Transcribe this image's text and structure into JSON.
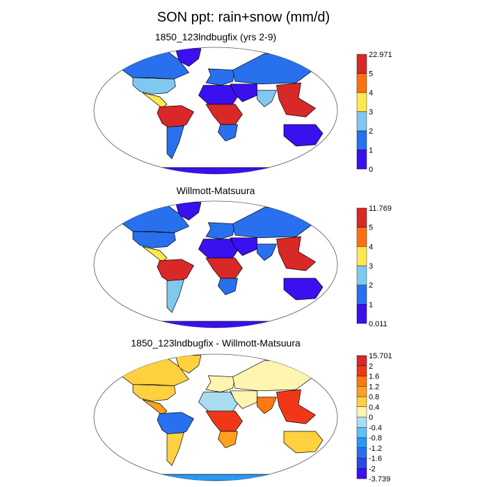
{
  "figure": {
    "title": "SON ppt: rain+snow (mm/d)"
  },
  "colors": {
    "absolute": [
      "#3a10ee",
      "#2870ee",
      "#80c8f0",
      "#ffe850",
      "#ff7010",
      "#d82828"
    ],
    "difference": [
      "#3a10ee",
      "#2848e8",
      "#2870f0",
      "#2a98f5",
      "#60c0f8",
      "#a8dcf0",
      "#fff4b0",
      "#ffd040",
      "#ffa020",
      "#ff7810",
      "#f03818",
      "#d82828"
    ],
    "ocean": "#ffffff",
    "coast": "#000000"
  },
  "chart_data": [
    {
      "type": "heatmap",
      "projection": "Robinson-like world map",
      "title": "1850_123lndbugfix (yrs 2-9)",
      "colorbar": {
        "labels": [
          "22.971",
          "5",
          "4",
          "3",
          "2",
          "1",
          "0"
        ],
        "max": 22.971,
        "min": 0,
        "bounds": [
          0,
          1,
          2,
          3,
          4,
          5,
          22.971
        ]
      },
      "regions": [
        {
          "name": "Greenland",
          "value": 0.5
        },
        {
          "name": "Canada",
          "value": 1.2
        },
        {
          "name": "United States",
          "value": 2.2
        },
        {
          "name": "Central America",
          "value": 3.5
        },
        {
          "name": "Amazon",
          "value": 6.0
        },
        {
          "name": "Southern South America",
          "value": 2.0
        },
        {
          "name": "Europe",
          "value": 1.5
        },
        {
          "name": "Sahara",
          "value": 0.2
        },
        {
          "name": "Central Africa",
          "value": 6.0
        },
        {
          "name": "Southern Africa",
          "value": 1.5
        },
        {
          "name": "Middle East",
          "value": 0.4
        },
        {
          "name": "Russia",
          "value": 1.2
        },
        {
          "name": "India",
          "value": 2.5
        },
        {
          "name": "Southeast Asia",
          "value": 6.0
        },
        {
          "name": "Australia",
          "value": 0.8
        },
        {
          "name": "Antarctica",
          "value": 0.4
        }
      ]
    },
    {
      "type": "heatmap",
      "projection": "Robinson-like world map",
      "title": "Willmott-Matsuura",
      "colorbar": {
        "labels": [
          "11.769",
          "5",
          "4",
          "3",
          "2",
          "1",
          "0.011"
        ],
        "max": 11.769,
        "min": 0.011,
        "bounds": [
          0.011,
          1,
          2,
          3,
          4,
          5,
          11.769
        ]
      },
      "regions": [
        {
          "name": "Greenland",
          "value": 0.6
        },
        {
          "name": "Canada",
          "value": 1.3
        },
        {
          "name": "United States",
          "value": 2.0
        },
        {
          "name": "Central America",
          "value": 3.5
        },
        {
          "name": "Amazon",
          "value": 5.5
        },
        {
          "name": "Southern South America",
          "value": 2.2
        },
        {
          "name": "Europe",
          "value": 1.8
        },
        {
          "name": "Sahara",
          "value": 0.1
        },
        {
          "name": "Central Africa",
          "value": 5.5
        },
        {
          "name": "Southern Africa",
          "value": 1.2
        },
        {
          "name": "Middle East",
          "value": 0.3
        },
        {
          "name": "Russia",
          "value": 1.4
        },
        {
          "name": "India",
          "value": 2.0
        },
        {
          "name": "Southeast Asia",
          "value": 6.0
        },
        {
          "name": "Australia",
          "value": 0.7
        },
        {
          "name": "Antarctica",
          "value": 0.4
        }
      ]
    },
    {
      "type": "heatmap",
      "projection": "Robinson-like world map",
      "title": "1850_123lndbugfix - Willmott-Matsuura",
      "colorbar": {
        "labels": [
          "15.701",
          "2",
          "1.6",
          "1.2",
          "0.8",
          "0.4",
          "0",
          "-0.4",
          "-0.8",
          "-1.2",
          "-1.6",
          "-2",
          "-3.739"
        ],
        "max": 15.701,
        "min": -3.739,
        "bounds": [
          -3.739,
          -2,
          -1.6,
          -1.2,
          -0.8,
          -0.4,
          0,
          0.4,
          0.8,
          1.2,
          1.6,
          2,
          15.701
        ]
      },
      "regions": [
        {
          "name": "Greenland",
          "value": 0.6
        },
        {
          "name": "Canada",
          "value": 0.5
        },
        {
          "name": "United States",
          "value": 0.5
        },
        {
          "name": "Central America",
          "value": 0.9
        },
        {
          "name": "Amazon",
          "value": -1.3
        },
        {
          "name": "Southern South America",
          "value": 0.5
        },
        {
          "name": "Europe",
          "value": 0.3
        },
        {
          "name": "Sahara",
          "value": -0.1
        },
        {
          "name": "Central Africa",
          "value": 1.9
        },
        {
          "name": "Southern Africa",
          "value": 0.9
        },
        {
          "name": "Middle East",
          "value": 0.2
        },
        {
          "name": "Russia",
          "value": 0.2
        },
        {
          "name": "India",
          "value": 1.3
        },
        {
          "name": "Southeast Asia",
          "value": 1.8
        },
        {
          "name": "Australia",
          "value": 0.5
        },
        {
          "name": "Antarctica",
          "value": -1.0
        }
      ]
    }
  ]
}
